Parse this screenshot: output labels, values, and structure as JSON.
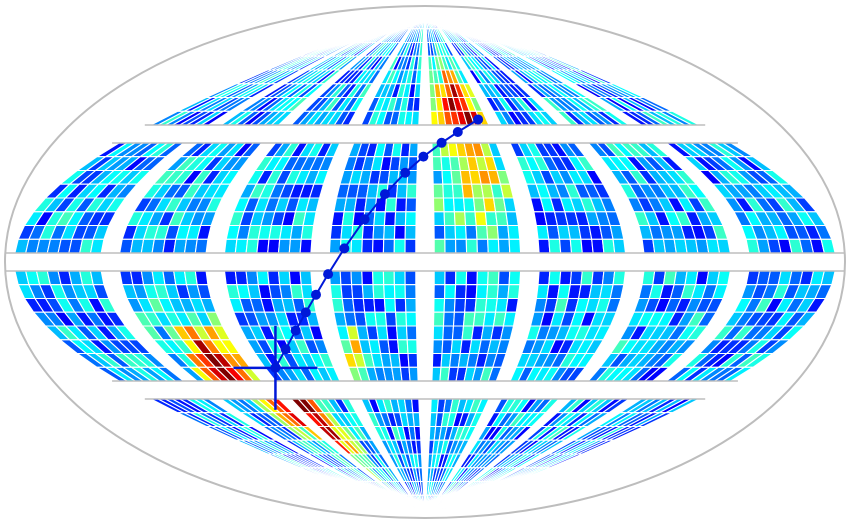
{
  "projection": "ellipse-sky-map",
  "layout": {
    "facet_rows": 4,
    "facet_cols": 8,
    "cell_grid": 8
  },
  "colormap": {
    "name": "jet",
    "stops": [
      "#00007f",
      "#0000ff",
      "#0080ff",
      "#00ffff",
      "#80ff80",
      "#ffff00",
      "#ff8000",
      "#ff0000",
      "#7f0000"
    ]
  },
  "colors": {
    "outline": "#bdbdbd",
    "cell_border": "#ffffff",
    "track": "#0018d8"
  },
  "hotspots": [
    {
      "row": 0,
      "col": 4,
      "u": 0.55,
      "v": 0.95,
      "strength": 1.0,
      "spread": 0.32
    },
    {
      "row": 3,
      "col": 2,
      "u": 0.05,
      "v": 0.12,
      "strength": 1.0,
      "spread": 0.3
    },
    {
      "row": 2,
      "col": 1,
      "u": 0.65,
      "v": 0.9,
      "strength": 1.0,
      "spread": 0.28
    },
    {
      "row": 3,
      "col": 1,
      "u": 0.95,
      "v": 0.08,
      "strength": 0.7,
      "spread": 0.25
    },
    {
      "row": 1,
      "col": 4,
      "u": 0.55,
      "v": 0.25,
      "strength": 0.55,
      "spread": 0.35
    },
    {
      "row": 2,
      "col": 3,
      "u": 0.08,
      "v": 0.75,
      "strength": 0.45,
      "spread": 0.22
    }
  ],
  "track": {
    "fractions": [
      0.0,
      0.05,
      0.1,
      0.15,
      0.2,
      0.26,
      0.34,
      0.44,
      0.54,
      0.64,
      0.73,
      0.82,
      0.9,
      1.0
    ],
    "crosshair": true
  }
}
